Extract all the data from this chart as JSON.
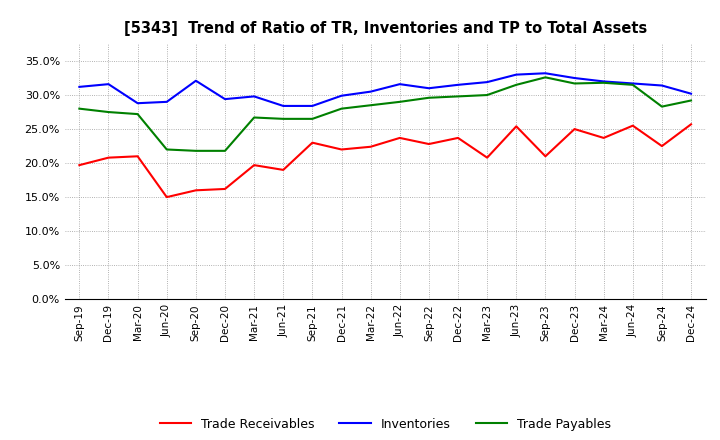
{
  "title": "[5343]  Trend of Ratio of TR, Inventories and TP to Total Assets",
  "labels": [
    "Sep-19",
    "Dec-19",
    "Mar-20",
    "Jun-20",
    "Sep-20",
    "Dec-20",
    "Mar-21",
    "Jun-21",
    "Sep-21",
    "Dec-21",
    "Mar-22",
    "Jun-22",
    "Sep-22",
    "Dec-22",
    "Mar-23",
    "Jun-23",
    "Sep-23",
    "Dec-23",
    "Mar-24",
    "Jun-24",
    "Sep-24",
    "Dec-24"
  ],
  "trade_receivables": [
    0.197,
    0.208,
    0.21,
    0.15,
    0.16,
    0.162,
    0.197,
    0.19,
    0.23,
    0.22,
    0.224,
    0.237,
    0.228,
    0.237,
    0.208,
    0.254,
    0.21,
    0.25,
    0.237,
    0.255,
    0.225,
    0.257
  ],
  "inventories": [
    0.312,
    0.316,
    0.288,
    0.29,
    0.321,
    0.294,
    0.298,
    0.284,
    0.284,
    0.299,
    0.305,
    0.316,
    0.31,
    0.315,
    0.319,
    0.33,
    0.332,
    0.325,
    0.32,
    0.317,
    0.314,
    0.302
  ],
  "trade_payables": [
    0.28,
    0.275,
    0.272,
    0.22,
    0.218,
    0.218,
    0.267,
    0.265,
    0.265,
    0.28,
    0.285,
    0.29,
    0.296,
    0.298,
    0.3,
    0.315,
    0.326,
    0.317,
    0.318,
    0.315,
    0.283,
    0.292
  ],
  "tr_color": "#ff0000",
  "inv_color": "#0000ff",
  "tp_color": "#008000",
  "ylim": [
    0.0,
    0.375
  ],
  "yticks": [
    0.0,
    0.05,
    0.1,
    0.15,
    0.2,
    0.25,
    0.3,
    0.35
  ],
  "background_color": "#ffffff",
  "grid_color": "#999999"
}
